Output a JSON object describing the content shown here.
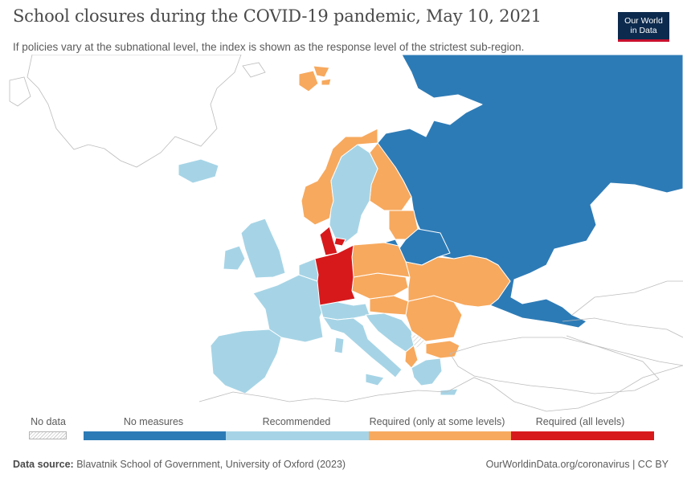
{
  "header": {
    "title": "School closures during the COVID-19 pandemic, May 10, 2021",
    "subtitle": "If policies vary at the subnational level, the index is shown as the response level of the strictest sub-region."
  },
  "logo": {
    "line1": "Our World",
    "line2": "in Data"
  },
  "colors": {
    "no_measures": "#2d7bb6",
    "recommended": "#a6d4e6",
    "required_some": "#f7a95e",
    "required_all": "#d7191c",
    "no_data_hatch": "#cfcfcf",
    "border": "#ffffff",
    "outline": "#bcbcbc"
  },
  "legend": {
    "no_data": "No data",
    "categories": [
      {
        "label": "No measures",
        "color": "#2d7bb6"
      },
      {
        "label": "Recommended",
        "color": "#a6d4e6"
      },
      {
        "label": "Required (only at some levels)",
        "color": "#f7a95e"
      },
      {
        "label": "Required (all levels)",
        "color": "#d7191c"
      }
    ]
  },
  "footer": {
    "source_label": "Data source:",
    "source_text": " Blavatnik School of Government, University of Oxford (2023)",
    "right": "OurWorldinData.org/coronavirus | CC BY"
  },
  "map": {
    "regions": [
      {
        "name": "russia",
        "category": "no_measures"
      },
      {
        "name": "belarus",
        "category": "no_measures"
      },
      {
        "name": "kaliningrad",
        "category": "no_measures"
      },
      {
        "name": "svalbard",
        "category": "required_some"
      },
      {
        "name": "norway",
        "category": "required_some"
      },
      {
        "name": "finland",
        "category": "required_some"
      },
      {
        "name": "baltics",
        "category": "required_some"
      },
      {
        "name": "poland",
        "category": "required_some"
      },
      {
        "name": "czechia-slovakia",
        "category": "required_some"
      },
      {
        "name": "hungary",
        "category": "required_some"
      },
      {
        "name": "ukraine",
        "category": "required_some"
      },
      {
        "name": "romania",
        "category": "required_some"
      },
      {
        "name": "bulgaria",
        "category": "required_some"
      },
      {
        "name": "albania",
        "category": "required_some"
      },
      {
        "name": "sweden",
        "category": "recommended"
      },
      {
        "name": "iceland",
        "category": "recommended"
      },
      {
        "name": "britain",
        "category": "recommended"
      },
      {
        "name": "ireland",
        "category": "recommended"
      },
      {
        "name": "france",
        "category": "recommended"
      },
      {
        "name": "iberia",
        "category": "recommended"
      },
      {
        "name": "italy",
        "category": "recommended"
      },
      {
        "name": "benelux",
        "category": "recommended"
      },
      {
        "name": "alps",
        "category": "recommended"
      },
      {
        "name": "balkans",
        "category": "recommended"
      },
      {
        "name": "greece",
        "category": "recommended"
      },
      {
        "name": "germany",
        "category": "required_all"
      },
      {
        "name": "denmark",
        "category": "required_all"
      },
      {
        "name": "kosovo",
        "category": "no_data"
      }
    ]
  }
}
